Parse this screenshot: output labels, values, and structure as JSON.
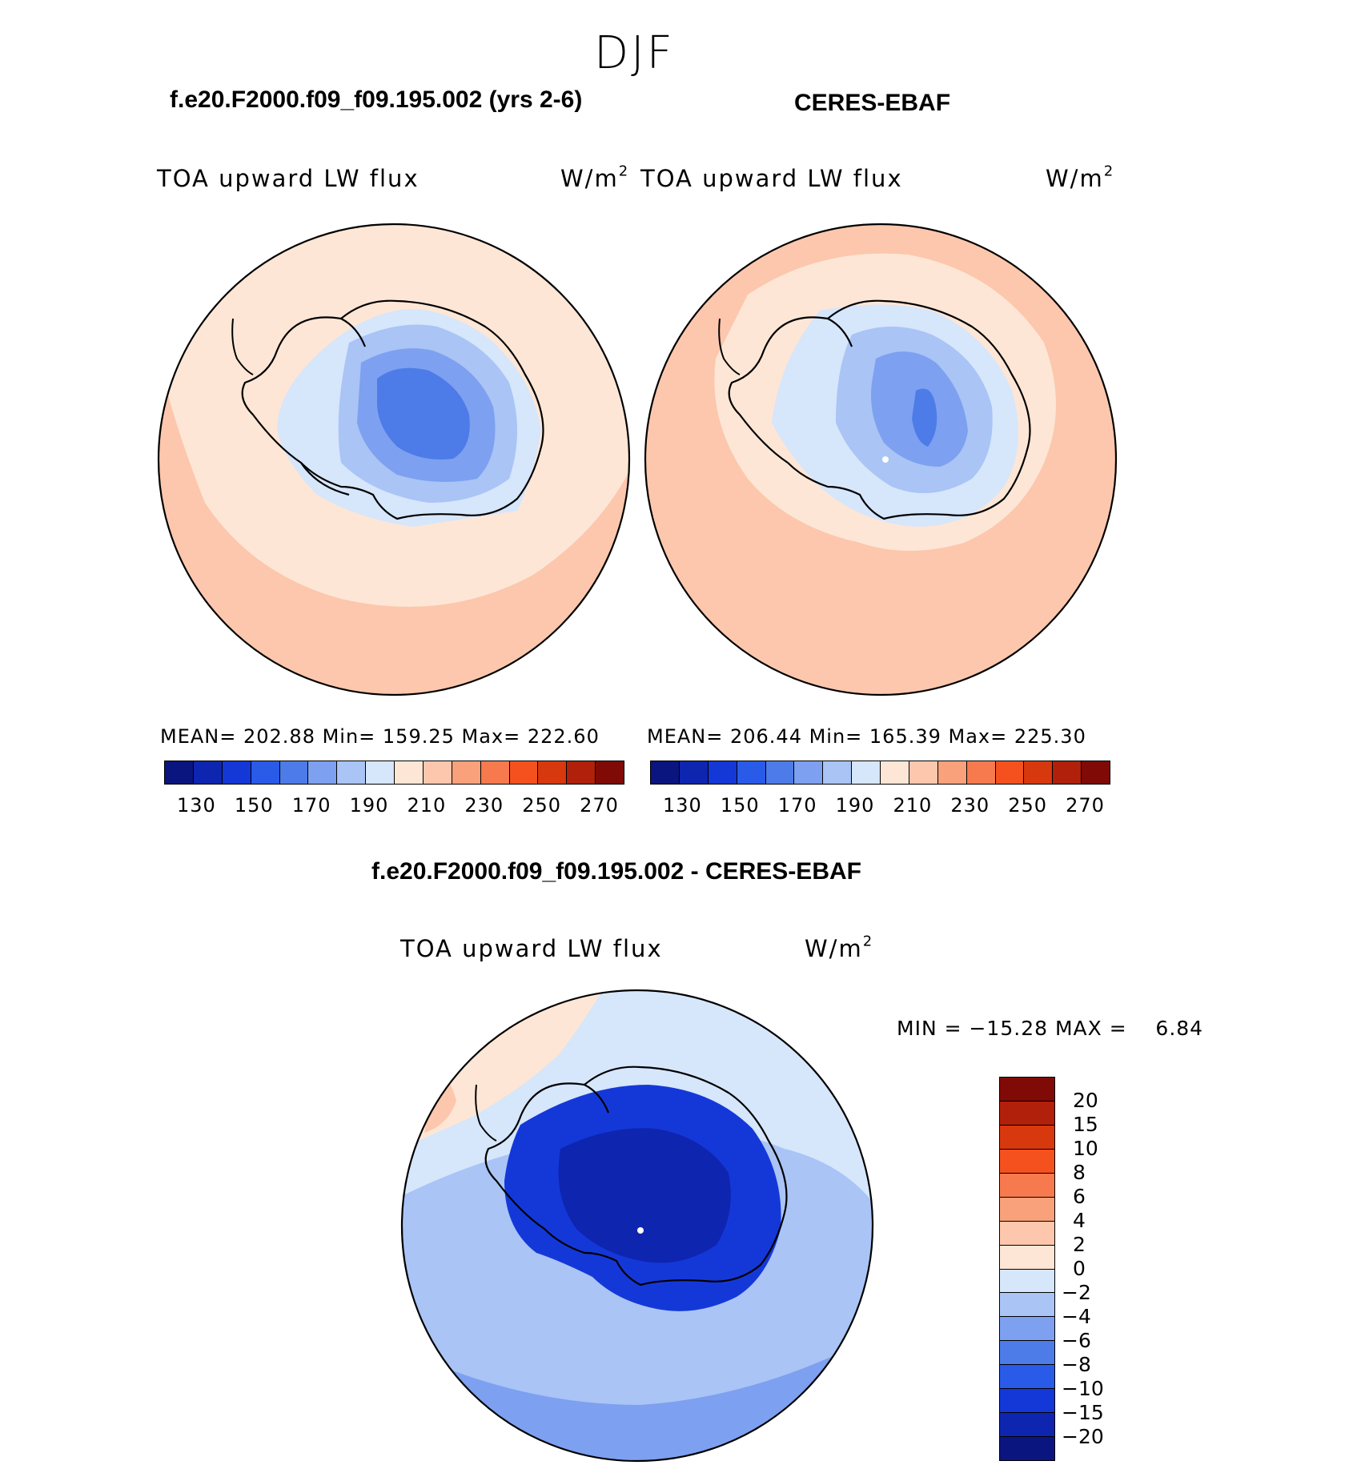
{
  "title": "DJF",
  "left_panel": {
    "case": "f.e20.F2000.f09_f09.195.002 (yrs 2-6)",
    "var_label": "TOA upward LW flux",
    "units_base": "W/m",
    "units_exp": "2",
    "stats": "MEAN= 202.88   Min= 159.25   Max= 222.60"
  },
  "right_panel": {
    "case": "CERES-EBAF",
    "var_label": "TOA upward LW flux",
    "units_base": "W/m",
    "units_exp": "2",
    "stats": "MEAN= 206.44   Min= 165.39   Max= 225.30"
  },
  "diff_panel": {
    "case": "f.e20.F2000.f09_f09.195.002 - CERES-EBAF",
    "var_label": "TOA upward LW flux",
    "units_base": "W/m",
    "units_exp": "2",
    "minmax": "MIN = −15.28 MAX =    6.84"
  },
  "colorbar_abs": {
    "colors": [
      "#0a1580",
      "#0e25b0",
      "#1438d8",
      "#2a5ae8",
      "#4d7ce8",
      "#7da0f0",
      "#a9c4f5",
      "#d6e6fb",
      "#fde6d6",
      "#fcc7ad",
      "#f9a17a",
      "#f77a4e",
      "#f4511e",
      "#d8380e",
      "#b0200a",
      "#7f0a06"
    ],
    "ticks": [
      "130",
      "150",
      "170",
      "190",
      "210",
      "230",
      "250",
      "270"
    ]
  },
  "colorbar_diff": {
    "colors": [
      "#0a1580",
      "#0e25b0",
      "#1438d8",
      "#2a5ae8",
      "#4d7ce8",
      "#7da0f0",
      "#a9c4f5",
      "#d6e6fb",
      "#fde6d6",
      "#fcc7ad",
      "#f9a17a",
      "#f77a4e",
      "#f4511e",
      "#d8380e",
      "#b0200a",
      "#7f0a06"
    ],
    "ticks_top_to_bottom": [
      "20",
      "15",
      "10",
      "8",
      "6",
      "4",
      "2",
      "0",
      "−2",
      "−4",
      "−6",
      "−8",
      "−10",
      "−15",
      "−20"
    ]
  }
}
